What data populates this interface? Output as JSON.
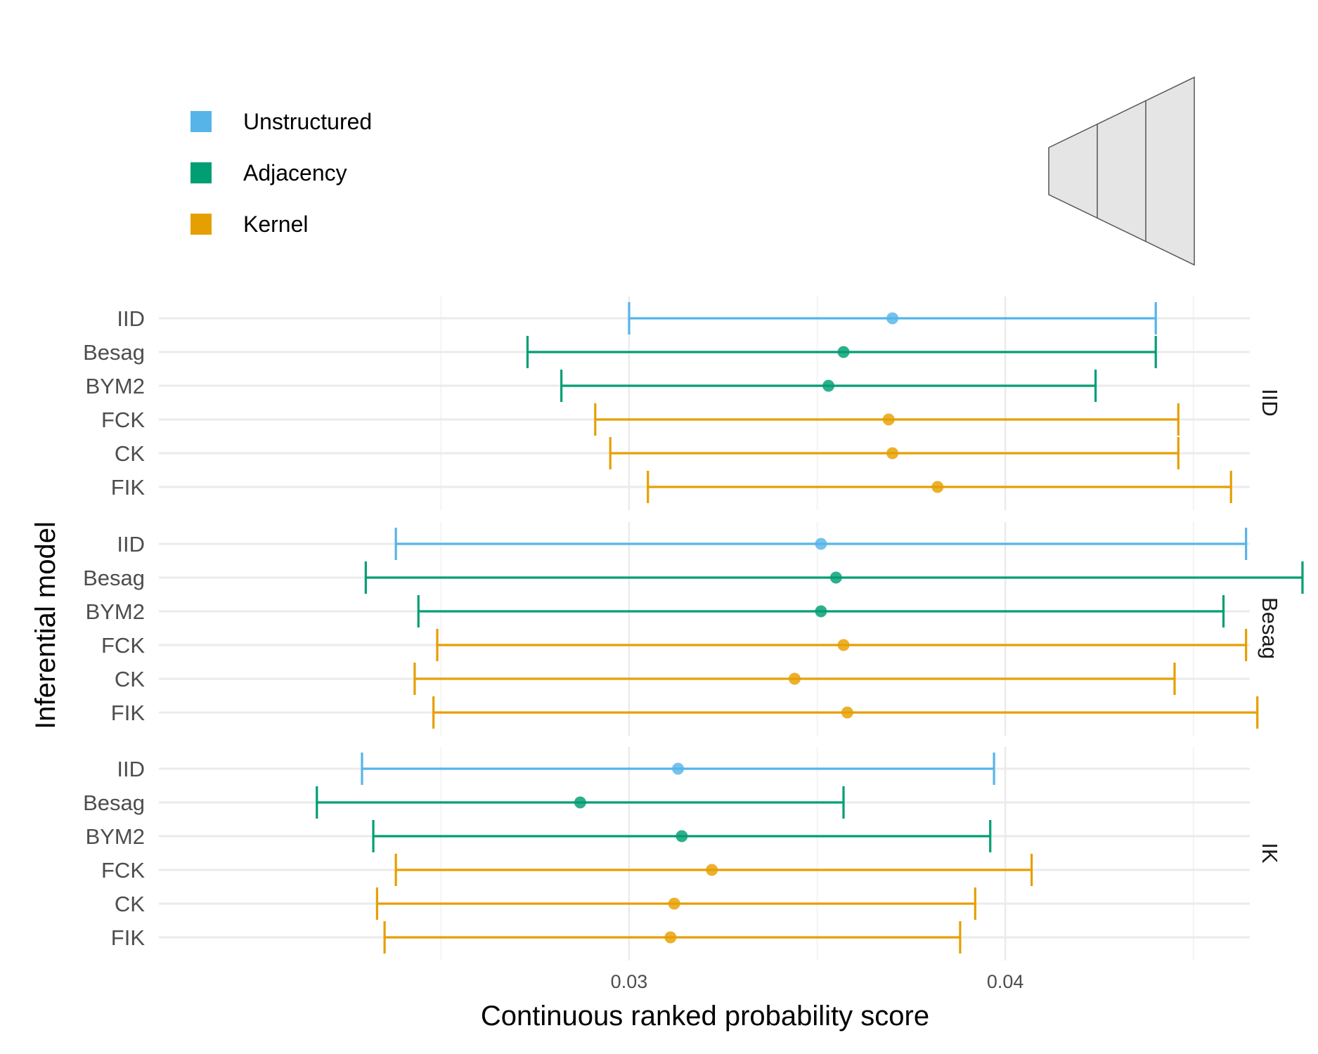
{
  "chart_data": {
    "type": "errorbar",
    "xlabel": "Continuous ranked probability score",
    "ylabel": "Inferential model",
    "xlim": [
      0.0175,
      0.0465
    ],
    "x_ticks": [
      0.03,
      0.04
    ],
    "x_tick_labels": [
      "0.03",
      "0.04"
    ],
    "x_minor_ticks": [
      0.025,
      0.035,
      0.045
    ],
    "grid": true,
    "legend": {
      "position": "top-left",
      "items": [
        {
          "label": "Unstructured",
          "color": "#56B4E9"
        },
        {
          "label": "Adjacency",
          "color": "#009E73"
        },
        {
          "label": "Kernel",
          "color": "#E69F00"
        }
      ]
    },
    "categories": [
      "IID",
      "Besag",
      "BYM2",
      "FCK",
      "CK",
      "FIK"
    ],
    "category_groups": {
      "IID": "Unstructured",
      "Besag": "Adjacency",
      "BYM2": "Adjacency",
      "FCK": "Kernel",
      "CK": "Kernel",
      "FIK": "Kernel"
    },
    "panels": [
      {
        "strip": "IID",
        "rows": [
          {
            "model": "IID",
            "low": 0.03,
            "mid": 0.037,
            "high": 0.044
          },
          {
            "model": "Besag",
            "low": 0.0273,
            "mid": 0.0357,
            "high": 0.044
          },
          {
            "model": "BYM2",
            "low": 0.0282,
            "mid": 0.0353,
            "high": 0.0424
          },
          {
            "model": "FCK",
            "low": 0.0291,
            "mid": 0.0369,
            "high": 0.0446
          },
          {
            "model": "CK",
            "low": 0.0295,
            "mid": 0.037,
            "high": 0.0446
          },
          {
            "model": "FIK",
            "low": 0.0305,
            "mid": 0.0382,
            "high": 0.046
          }
        ]
      },
      {
        "strip": "Besag",
        "rows": [
          {
            "model": "IID",
            "low": 0.0238,
            "mid": 0.0351,
            "high": 0.0464
          },
          {
            "model": "Besag",
            "low": 0.023,
            "mid": 0.0355,
            "high": 0.0479
          },
          {
            "model": "BYM2",
            "low": 0.0244,
            "mid": 0.0351,
            "high": 0.0458
          },
          {
            "model": "FCK",
            "low": 0.0249,
            "mid": 0.0357,
            "high": 0.0464
          },
          {
            "model": "CK",
            "low": 0.0243,
            "mid": 0.0344,
            "high": 0.0445
          },
          {
            "model": "FIK",
            "low": 0.0248,
            "mid": 0.0358,
            "high": 0.0467
          }
        ]
      },
      {
        "strip": "IK",
        "rows": [
          {
            "model": "IID",
            "low": 0.0229,
            "mid": 0.0313,
            "high": 0.0397
          },
          {
            "model": "Besag",
            "low": 0.0217,
            "mid": 0.0287,
            "high": 0.0357
          },
          {
            "model": "BYM2",
            "low": 0.0232,
            "mid": 0.0314,
            "high": 0.0396
          },
          {
            "model": "FCK",
            "low": 0.0238,
            "mid": 0.0322,
            "high": 0.0407
          },
          {
            "model": "CK",
            "low": 0.0233,
            "mid": 0.0312,
            "high": 0.0392
          },
          {
            "model": "FIK",
            "low": 0.0235,
            "mid": 0.0311,
            "high": 0.0388
          }
        ]
      }
    ]
  }
}
